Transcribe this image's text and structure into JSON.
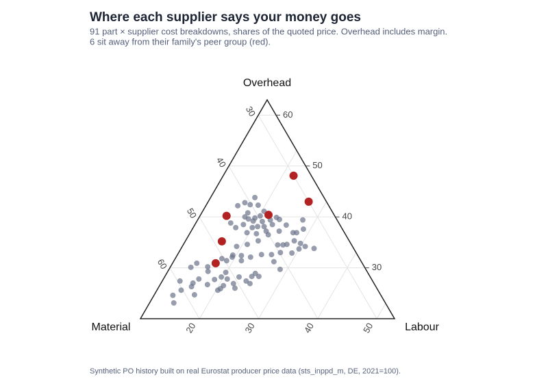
{
  "chart_data": {
    "type": "ternary",
    "title": "Where each supplier says your money goes",
    "subtitle": [
      "91 part × supplier cost breakdowns, shares of the quoted price. Overhead includes margin.",
      "6 sit away from their family's peer group (red)."
    ],
    "source": "Synthetic PO history built on real Eurostat producer price data (sts_inppd_m, DE, 2021=100).",
    "grid": true,
    "a_axis": {
      "title": "Overhead",
      "lim": [
        20,
        63
      ],
      "ticks": [
        30,
        40,
        50,
        60
      ]
    },
    "b_axis": {
      "title": "Material",
      "lim": [
        27,
        70
      ],
      "ticks": [
        30,
        40,
        50,
        60
      ]
    },
    "c_axis": {
      "title": "Labour",
      "lim": [
        10,
        53
      ],
      "ticks": [
        20,
        30,
        40,
        50
      ]
    },
    "series": [
      {
        "color": "#6b7489",
        "overhead": [
          43.8,
          42.8,
          42.4,
          42.3,
          42.2,
          41.1,
          40.8,
          40.0,
          39.8,
          40.2,
          39.6,
          39.9,
          39.2,
          38.8,
          38.5,
          39.1,
          39.4,
          39.5,
          38.1,
          38.1,
          37.9,
          37.9,
          38.5,
          39.4,
          38.4,
          36.9,
          36.9,
          37.2,
          36.9,
          36.7,
          36.5,
          37.2,
          37.6,
          35.3,
          34.6,
          34.2,
          34.5,
          34.5,
          34.6,
          35.3,
          34.8,
          33.8,
          33.7,
          32.9,
          34.2,
          32.6,
          32.6,
          32.4,
          32.5,
          31.4,
          32.1,
          32.1,
          33.0,
          31.2,
          31.4,
          31.8,
          30.9,
          30.1,
          30.2,
          29.3,
          29.7,
          28.9,
          28.3,
          28.2,
          28.3,
          28.2,
          27.8,
          27.7,
          27.8,
          27.4,
          27.0,
          26.7,
          26.9,
          27.4,
          26.9,
          26.0,
          26.5,
          25.6,
          26.3,
          25.6,
          25.9,
          24.7,
          24.6,
          23.1,
          29.1
        ],
        "labour": [
          17.5,
          16.3,
          17.4,
          18.8,
          15.4,
          20.4,
          17.8,
          17.7,
          19.5,
          20.2,
          18.5,
          23.1,
          19.5,
          15.9,
          18.2,
          21.1,
          22.3,
          23.8,
          20.8,
          21.9,
          17.2,
          20.0,
          23.1,
          27.8,
          25.5,
          27.4,
          28.0,
          22.7,
          19.6,
          21.3,
          23.4,
          24.9,
          28.8,
          22.3,
          20.8,
          19.2,
          26.0,
          26.9,
          27.5,
          28.4,
          29.7,
          32.5,
          30.0,
          29.2,
          30.8,
          25.9,
          24.2,
          20.9,
          19.4,
          21.4,
          19.5,
          22.6,
          27.2,
          27.0,
          18.9,
          17.9,
          14.1,
          13.5,
          16.3,
          16.8,
          28.8,
          25.0,
          24.7,
          22.6,
          25.9,
          19.6,
          20.8,
          18.7,
          16.0,
          13.0,
          15.4,
          18.0,
          22.3,
          24.2,
          25.1,
          23.0,
          20.8,
          20.3,
          15.5,
          14.1,
          20.6,
          16.8,
          13.2,
          14.1,
          19.9
        ],
        "material": [
          38.7,
          40.9,
          40.2,
          38.9,
          42.4,
          38.5,
          41.4,
          42.3,
          40.7,
          39.6,
          41.9,
          37.0,
          41.3,
          45.3,
          43.3,
          39.8,
          38.3,
          36.7,
          41.1,
          40.0,
          44.9,
          42.1,
          38.4,
          32.8,
          36.1,
          35.7,
          35.1,
          40.1,
          43.5,
          42.0,
          40.1,
          37.9,
          33.6,
          42.4,
          44.6,
          46.6,
          39.5,
          38.6,
          37.9,
          36.3,
          35.5,
          33.7,
          36.3,
          37.9,
          35.0,
          41.5,
          43.2,
          46.7,
          48.1,
          47.2,
          48.4,
          45.3,
          39.8,
          41.8,
          49.7,
          50.3,
          55.0,
          56.4,
          53.5,
          53.9,
          41.5,
          46.1,
          47.0,
          49.2,
          45.8,
          52.2,
          51.4,
          53.6,
          56.2,
          59.6,
          57.6,
          55.3,
          50.8,
          48.4,
          48.0,
          51.0,
          52.7,
          54.1,
          58.2,
          60.3,
          53.5,
          58.5,
          62.2,
          62.8,
          51.0
        ]
      },
      {
        "color": "#b22222",
        "overhead": [
          48.1,
          43.0,
          40.4,
          40.2,
          35.2,
          30.9
        ],
        "labour": [
          21.9,
          27.0,
          21.5,
          14.5,
          16.2,
          17.3
        ],
        "material": [
          30.0,
          30.0,
          38.1,
          45.3,
          48.6,
          51.8
        ]
      }
    ]
  }
}
